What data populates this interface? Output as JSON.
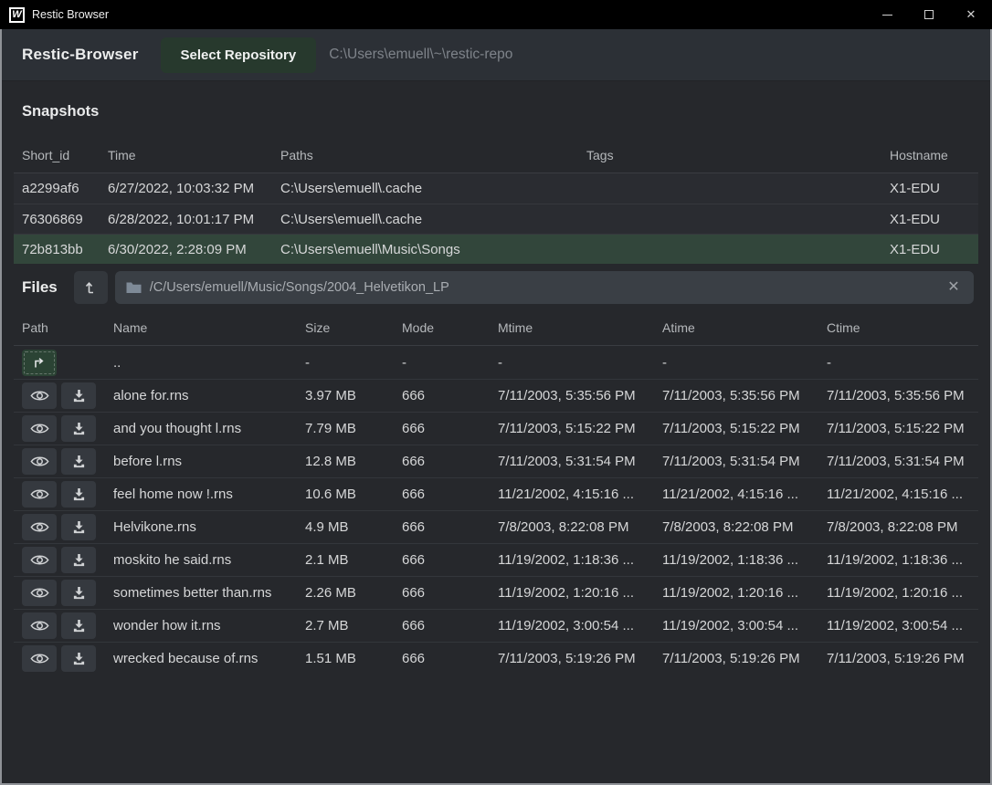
{
  "window": {
    "title": "Restic Browser"
  },
  "titlebar": {
    "minimize": "minimize",
    "maximize": "maximize",
    "close": "✕"
  },
  "header": {
    "app_name": "Restic-Browser",
    "select_repository_label": "Select Repository",
    "repository_path": "C:\\Users\\emuell\\~\\restic-repo"
  },
  "snapshots": {
    "heading": "Snapshots",
    "columns": [
      "Short_id",
      "Time",
      "Paths",
      "Tags",
      "Hostname"
    ],
    "rows": [
      {
        "short_id": "a2299af6",
        "time": "6/27/2022, 10:03:32 PM",
        "paths": "C:\\Users\\emuell\\.cache",
        "tags": "",
        "hostname": "X1-EDU",
        "selected": false
      },
      {
        "short_id": "76306869",
        "time": "6/28/2022, 10:01:17 PM",
        "paths": "C:\\Users\\emuell\\.cache",
        "tags": "",
        "hostname": "X1-EDU",
        "selected": false
      },
      {
        "short_id": "72b813bb",
        "time": "6/30/2022, 2:28:09 PM",
        "paths": "C:\\Users\\emuell\\Music\\Songs",
        "tags": "",
        "hostname": "X1-EDU",
        "selected": true
      }
    ]
  },
  "files": {
    "heading": "Files",
    "path_value": "/C/Users/emuell/Music/Songs/2004_Helvetikon_LP",
    "columns": [
      "Path",
      "Name",
      "Size",
      "Mode",
      "Mtime",
      "Atime",
      "Ctime"
    ],
    "parent_row": {
      "name": "..",
      "size": "-",
      "mode": "-",
      "mtime": "-",
      "atime": "-",
      "ctime": "-"
    },
    "rows": [
      {
        "name": "alone for.rns",
        "size": "3.97 MB",
        "mode": "666",
        "mtime": "7/11/2003, 5:35:56 PM",
        "atime": "7/11/2003, 5:35:56 PM",
        "ctime": "7/11/2003, 5:35:56 PM"
      },
      {
        "name": "and you thought l.rns",
        "size": "7.79 MB",
        "mode": "666",
        "mtime": "7/11/2003, 5:15:22 PM",
        "atime": "7/11/2003, 5:15:22 PM",
        "ctime": "7/11/2003, 5:15:22 PM"
      },
      {
        "name": "before l.rns",
        "size": "12.8 MB",
        "mode": "666",
        "mtime": "7/11/2003, 5:31:54 PM",
        "atime": "7/11/2003, 5:31:54 PM",
        "ctime": "7/11/2003, 5:31:54 PM"
      },
      {
        "name": "feel home now !.rns",
        "size": "10.6 MB",
        "mode": "666",
        "mtime": "11/21/2002, 4:15:16 ...",
        "atime": "11/21/2002, 4:15:16 ...",
        "ctime": "11/21/2002, 4:15:16 ..."
      },
      {
        "name": "Helvikone.rns",
        "size": "4.9 MB",
        "mode": "666",
        "mtime": "7/8/2003, 8:22:08 PM",
        "atime": "7/8/2003, 8:22:08 PM",
        "ctime": "7/8/2003, 8:22:08 PM"
      },
      {
        "name": "moskito he said.rns",
        "size": "2.1 MB",
        "mode": "666",
        "mtime": "11/19/2002, 1:18:36 ...",
        "atime": "11/19/2002, 1:18:36 ...",
        "ctime": "11/19/2002, 1:18:36 ..."
      },
      {
        "name": "sometimes better than.rns",
        "size": "2.26 MB",
        "mode": "666",
        "mtime": "11/19/2002, 1:20:16 ...",
        "atime": "11/19/2002, 1:20:16 ...",
        "ctime": "11/19/2002, 1:20:16 ..."
      },
      {
        "name": "wonder how it.rns",
        "size": "2.7 MB",
        "mode": "666",
        "mtime": "11/19/2002, 3:00:54 ...",
        "atime": "11/19/2002, 3:00:54 ...",
        "ctime": "11/19/2002, 3:00:54 ..."
      },
      {
        "name": "wrecked because of.rns",
        "size": "1.51 MB",
        "mode": "666",
        "mtime": "7/11/2003, 5:19:26 PM",
        "atime": "7/11/2003, 5:19:26 PM",
        "ctime": "7/11/2003, 5:19:26 PM"
      }
    ]
  },
  "colors": {
    "titlebar_bg": "#000000",
    "window_bg": "#26282c",
    "header_bg": "#2c3036",
    "selected_row_green": "#32463b",
    "button_green": "#27392d",
    "input_bg": "#3a3f45"
  }
}
